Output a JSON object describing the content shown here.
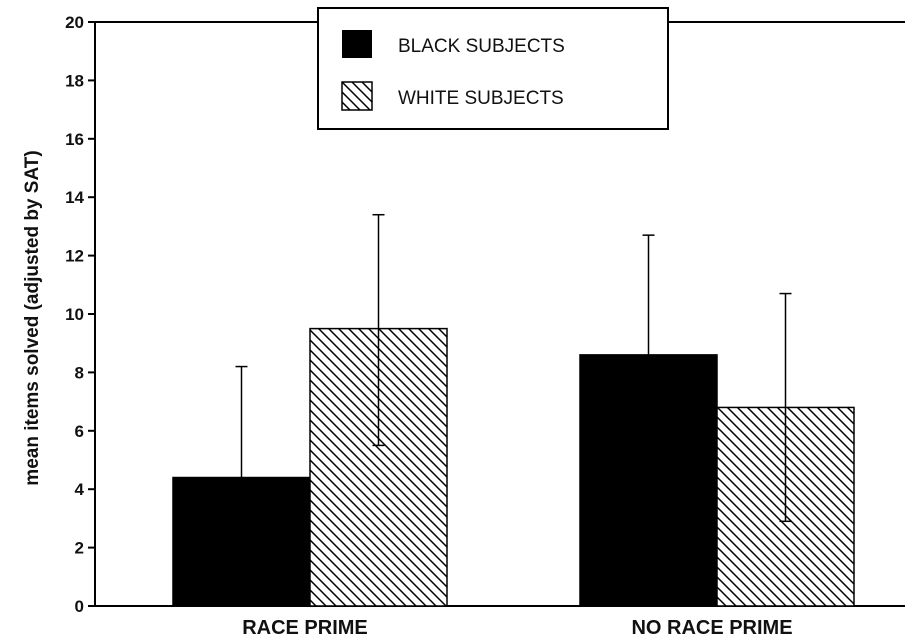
{
  "chart_data": {
    "type": "bar",
    "categories": [
      "RACE PRIME",
      "NO RACE PRIME"
    ],
    "series": [
      {
        "name": "BLACK SUBJECTS",
        "values": [
          4.4,
          8.6
        ],
        "error_upper": [
          8.2,
          12.7
        ],
        "error_lower": [
          4.4,
          8.6
        ],
        "fill": "solid",
        "color": "#000000"
      },
      {
        "name": "WHITE SUBJECTS",
        "values": [
          9.5,
          6.8
        ],
        "error_upper": [
          13.4,
          10.7
        ],
        "error_lower": [
          5.5,
          2.9
        ],
        "fill": "diagonal-hatch",
        "color": "#000000"
      }
    ],
    "ylabel": "mean items solved (adjusted by SAT)",
    "xlabel": "",
    "ylim": [
      0,
      20
    ],
    "yticks": [
      "0",
      "2",
      "4",
      "6",
      "8",
      "10",
      "12",
      "14",
      "16",
      "18",
      "20"
    ],
    "legend_position": "top-center",
    "grid": false
  }
}
